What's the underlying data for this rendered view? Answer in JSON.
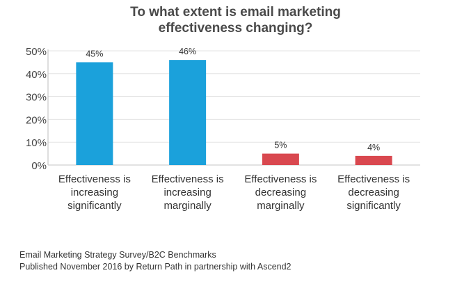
{
  "chart_data": {
    "type": "bar",
    "title_lines": [
      "To what extent is email marketing",
      "effectiveness changing?"
    ],
    "categories": [
      [
        "Effectiveness is",
        "increasing",
        "significantly"
      ],
      [
        "Effectiveness is",
        "increasing",
        "marginally"
      ],
      [
        "Effectiveness is",
        "decreasing",
        "marginally"
      ],
      [
        "Effectiveness is",
        "decreasing",
        "significantly"
      ]
    ],
    "values": [
      45,
      46,
      5,
      4
    ],
    "data_labels": [
      "45%",
      "46%",
      "5%",
      "4%"
    ],
    "bar_colors": [
      "#1ba1db",
      "#1ba1db",
      "#d9484f",
      "#d9484f"
    ],
    "ylim": [
      0,
      50
    ],
    "yticks": [
      0,
      10,
      20,
      30,
      40,
      50
    ],
    "ytick_labels": [
      "0%",
      "10%",
      "20%",
      "30%",
      "40%",
      "50%"
    ],
    "xlabel": "",
    "ylabel": "",
    "grid": true,
    "legend": "none"
  },
  "footer": {
    "line1": "Email Marketing Strategy Survey/B2C Benchmarks",
    "line2": "Published November 2016 by Return Path in partnership with Ascend2"
  }
}
